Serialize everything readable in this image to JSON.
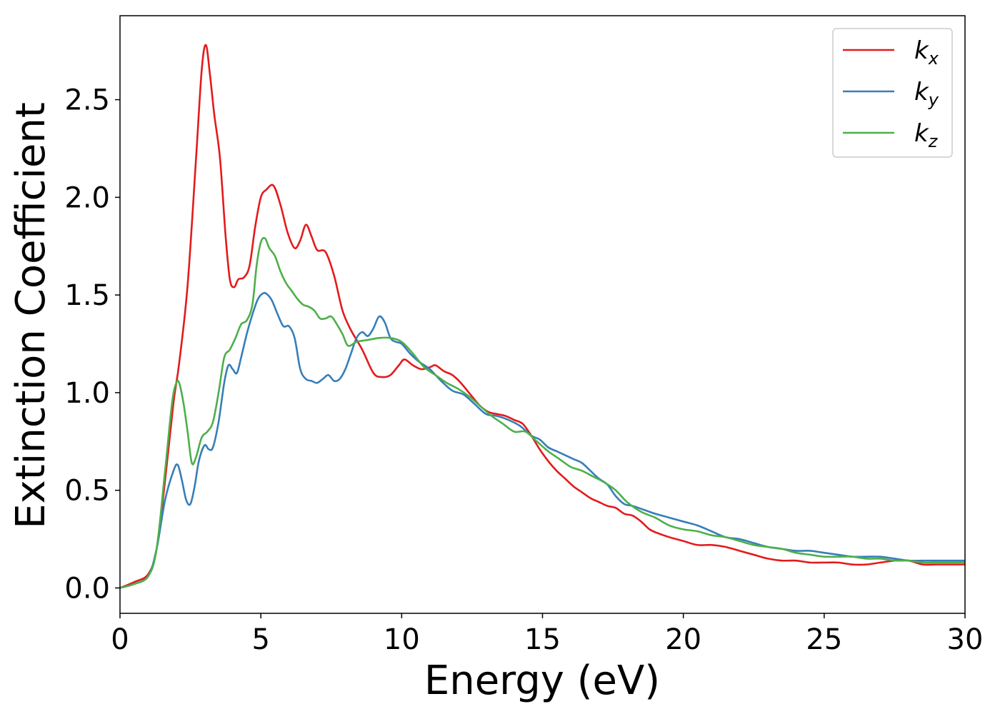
{
  "chart_data": {
    "type": "line",
    "title": "",
    "xlabel": "Energy (eV)",
    "ylabel": "Extinction Coefficient",
    "xlim": [
      0,
      30
    ],
    "ylim": [
      -0.13,
      2.93
    ],
    "xticks": [
      0,
      5,
      10,
      15,
      20,
      25,
      30
    ],
    "yticks": [
      0.0,
      0.5,
      1.0,
      1.5,
      2.0,
      2.5
    ],
    "xtick_labels": [
      "0",
      "5",
      "10",
      "15",
      "20",
      "25",
      "30"
    ],
    "ytick_labels": [
      "0.0",
      "0.5",
      "1.0",
      "1.5",
      "2.0",
      "2.5"
    ],
    "grid": false,
    "legend_position": "top-right",
    "series": [
      {
        "name": "k_x",
        "label_main": "k",
        "label_sub": "x",
        "color": "#e41a1c",
        "x": [
          0,
          0.5,
          1.0,
          1.3,
          1.6,
          1.9,
          2.1,
          2.4,
          2.7,
          2.9,
          3.05,
          3.2,
          3.35,
          3.55,
          3.75,
          3.9,
          4.05,
          4.2,
          4.4,
          4.6,
          4.8,
          5.0,
          5.2,
          5.45,
          5.7,
          5.95,
          6.2,
          6.4,
          6.6,
          6.8,
          7.0,
          7.3,
          7.6,
          7.9,
          8.2,
          8.6,
          9.0,
          9.3,
          9.6,
          9.9,
          10.1,
          10.4,
          10.7,
          11.0,
          11.2,
          11.5,
          11.8,
          12.1,
          12.5,
          12.8,
          13.1,
          13.4,
          13.7,
          14.0,
          14.3,
          14.6,
          14.9,
          15.2,
          15.5,
          15.8,
          16.1,
          16.4,
          16.7,
          17.0,
          17.3,
          17.6,
          17.9,
          18.2,
          18.5,
          18.8,
          19.1,
          19.5,
          20.0,
          20.5,
          21.0,
          21.5,
          22.0,
          22.5,
          23.0,
          23.5,
          24.0,
          24.5,
          25.0,
          25.5,
          26.0,
          26.5,
          27.0,
          27.5,
          28.0,
          28.5,
          29.0,
          29.5,
          30.0
        ],
        "y": [
          0.0,
          0.03,
          0.07,
          0.2,
          0.55,
          0.95,
          1.15,
          1.55,
          2.2,
          2.65,
          2.78,
          2.62,
          2.42,
          2.2,
          1.8,
          1.58,
          1.54,
          1.58,
          1.59,
          1.65,
          1.85,
          2.0,
          2.04,
          2.06,
          1.96,
          1.82,
          1.74,
          1.78,
          1.86,
          1.8,
          1.73,
          1.72,
          1.6,
          1.42,
          1.32,
          1.22,
          1.1,
          1.08,
          1.09,
          1.14,
          1.17,
          1.14,
          1.12,
          1.13,
          1.14,
          1.11,
          1.09,
          1.05,
          0.98,
          0.93,
          0.9,
          0.89,
          0.88,
          0.86,
          0.84,
          0.78,
          0.71,
          0.65,
          0.6,
          0.56,
          0.52,
          0.49,
          0.46,
          0.44,
          0.42,
          0.41,
          0.38,
          0.37,
          0.34,
          0.3,
          0.28,
          0.26,
          0.24,
          0.22,
          0.22,
          0.21,
          0.19,
          0.17,
          0.15,
          0.14,
          0.14,
          0.13,
          0.13,
          0.13,
          0.12,
          0.12,
          0.13,
          0.14,
          0.14,
          0.12,
          0.12,
          0.12,
          0.12
        ]
      },
      {
        "name": "k_y",
        "label_main": "k",
        "label_sub": "y",
        "color": "#377eb8",
        "x": [
          0,
          0.5,
          1.0,
          1.3,
          1.6,
          1.9,
          2.05,
          2.2,
          2.35,
          2.5,
          2.65,
          2.8,
          3.0,
          3.15,
          3.3,
          3.5,
          3.7,
          3.85,
          4.0,
          4.15,
          4.3,
          4.5,
          4.7,
          4.9,
          5.1,
          5.25,
          5.4,
          5.6,
          5.8,
          6.0,
          6.2,
          6.4,
          6.6,
          6.8,
          7.0,
          7.2,
          7.4,
          7.6,
          7.8,
          8.0,
          8.2,
          8.4,
          8.6,
          8.8,
          9.0,
          9.2,
          9.4,
          9.6,
          9.8,
          10.0,
          10.3,
          10.6,
          11.0,
          11.4,
          11.8,
          12.2,
          12.6,
          13.0,
          13.4,
          13.8,
          14.2,
          14.6,
          14.9,
          15.2,
          15.5,
          15.8,
          16.1,
          16.4,
          16.7,
          17.0,
          17.3,
          17.6,
          17.9,
          18.2,
          18.6,
          19.0,
          19.5,
          20.0,
          20.5,
          21.0,
          21.5,
          22.0,
          22.5,
          23.0,
          23.5,
          24.0,
          24.5,
          25.0,
          25.5,
          26.0,
          26.5,
          27.0,
          27.5,
          28.0,
          28.5,
          29.0,
          29.5,
          30.0
        ],
        "y": [
          0.0,
          0.02,
          0.06,
          0.2,
          0.45,
          0.6,
          0.63,
          0.55,
          0.45,
          0.43,
          0.52,
          0.65,
          0.73,
          0.71,
          0.72,
          0.85,
          1.05,
          1.14,
          1.12,
          1.1,
          1.18,
          1.3,
          1.4,
          1.48,
          1.51,
          1.5,
          1.47,
          1.4,
          1.34,
          1.34,
          1.28,
          1.12,
          1.07,
          1.06,
          1.05,
          1.07,
          1.09,
          1.06,
          1.07,
          1.12,
          1.2,
          1.28,
          1.31,
          1.29,
          1.33,
          1.39,
          1.36,
          1.28,
          1.26,
          1.25,
          1.2,
          1.16,
          1.12,
          1.06,
          1.01,
          0.99,
          0.94,
          0.89,
          0.88,
          0.86,
          0.83,
          0.78,
          0.76,
          0.72,
          0.7,
          0.68,
          0.66,
          0.64,
          0.6,
          0.56,
          0.53,
          0.47,
          0.43,
          0.42,
          0.4,
          0.38,
          0.36,
          0.34,
          0.32,
          0.29,
          0.26,
          0.25,
          0.23,
          0.21,
          0.2,
          0.19,
          0.19,
          0.18,
          0.17,
          0.16,
          0.16,
          0.16,
          0.15,
          0.14,
          0.14,
          0.14,
          0.14,
          0.14
        ]
      },
      {
        "name": "k_z",
        "label_main": "k",
        "label_sub": "z",
        "color": "#4daf4a",
        "x": [
          0,
          0.5,
          1.0,
          1.3,
          1.6,
          1.85,
          2.0,
          2.1,
          2.25,
          2.4,
          2.55,
          2.7,
          2.9,
          3.1,
          3.3,
          3.5,
          3.7,
          3.9,
          4.1,
          4.3,
          4.5,
          4.7,
          4.85,
          5.0,
          5.15,
          5.3,
          5.5,
          5.7,
          5.9,
          6.1,
          6.3,
          6.5,
          6.7,
          6.9,
          7.1,
          7.3,
          7.5,
          7.7,
          7.9,
          8.1,
          8.4,
          8.8,
          9.2,
          9.6,
          10.0,
          10.4,
          10.8,
          11.2,
          11.6,
          12.0,
          12.4,
          12.8,
          13.2,
          13.6,
          14.0,
          14.4,
          14.8,
          15.2,
          15.6,
          16.0,
          16.4,
          16.8,
          17.2,
          17.6,
          18.0,
          18.5,
          19.0,
          19.5,
          20.0,
          20.5,
          21.0,
          21.5,
          22.0,
          22.5,
          23.0,
          23.5,
          24.0,
          24.5,
          25.0,
          25.5,
          26.0,
          26.5,
          27.0,
          27.5,
          28.0,
          28.5,
          29.0,
          29.5,
          30.0
        ],
        "y": [
          0.0,
          0.02,
          0.06,
          0.2,
          0.6,
          0.95,
          1.05,
          1.05,
          0.95,
          0.8,
          0.64,
          0.67,
          0.77,
          0.8,
          0.85,
          1.0,
          1.18,
          1.22,
          1.28,
          1.35,
          1.37,
          1.45,
          1.65,
          1.77,
          1.79,
          1.74,
          1.7,
          1.62,
          1.56,
          1.52,
          1.48,
          1.45,
          1.44,
          1.42,
          1.38,
          1.38,
          1.39,
          1.35,
          1.3,
          1.24,
          1.26,
          1.27,
          1.28,
          1.28,
          1.26,
          1.2,
          1.13,
          1.09,
          1.05,
          1.02,
          0.98,
          0.93,
          0.88,
          0.84,
          0.8,
          0.8,
          0.75,
          0.7,
          0.66,
          0.62,
          0.6,
          0.57,
          0.54,
          0.5,
          0.44,
          0.39,
          0.36,
          0.32,
          0.3,
          0.29,
          0.27,
          0.26,
          0.24,
          0.22,
          0.21,
          0.2,
          0.18,
          0.17,
          0.16,
          0.16,
          0.16,
          0.15,
          0.15,
          0.14,
          0.14,
          0.13,
          0.13,
          0.13,
          0.13
        ]
      }
    ]
  }
}
